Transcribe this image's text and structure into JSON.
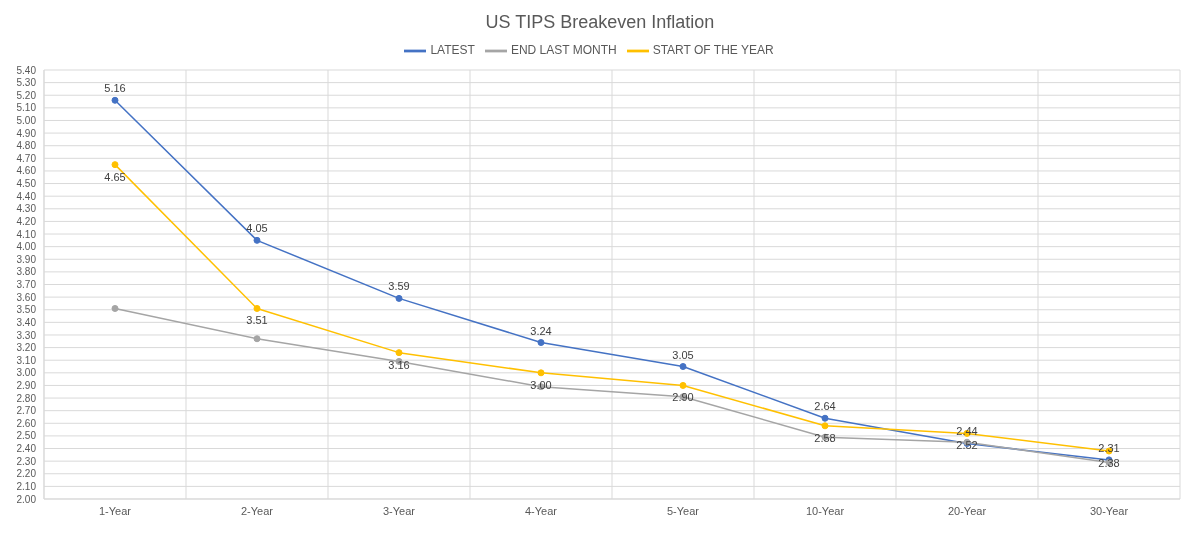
{
  "chart_data": {
    "type": "line",
    "title": "US TIPS Breakeven Inflation",
    "categories": [
      "1-Year",
      "2-Year",
      "3-Year",
      "4-Year",
      "5-Year",
      "10-Year",
      "20-Year",
      "30-Year"
    ],
    "series": [
      {
        "name": "LATEST",
        "color": "#4472c4",
        "values": [
          5.16,
          4.05,
          3.59,
          3.24,
          3.05,
          2.64,
          2.44,
          2.31
        ],
        "value_labels": [
          "5.16",
          "4.05",
          "3.59",
          "3.24",
          "3.05",
          "2.64",
          "2.44",
          "2.31"
        ]
      },
      {
        "name": "END LAST MONTH",
        "color": "#a5a5a5",
        "values": [
          3.51,
          3.27,
          3.09,
          2.89,
          2.81,
          2.49,
          2.45,
          2.29
        ]
      },
      {
        "name": "START OF THE YEAR",
        "color": "#ffc000",
        "values": [
          4.65,
          3.51,
          3.16,
          3.0,
          2.9,
          2.58,
          2.52,
          2.38
        ],
        "value_labels": [
          "4.65",
          "3.51",
          "3.16",
          "3.00",
          "2.90",
          "2.58",
          "2.52",
          "2.38"
        ]
      }
    ],
    "ylim": [
      2.0,
      5.4
    ],
    "yticks": [
      {
        "value": 2.0,
        "label": "2.00"
      },
      {
        "value": 2.1,
        "label": "2.10"
      },
      {
        "value": 2.2,
        "label": "2.20"
      },
      {
        "value": 2.3,
        "label": "2.30"
      },
      {
        "value": 2.4,
        "label": "2.40"
      },
      {
        "value": 2.5,
        "label": "2.50"
      },
      {
        "value": 2.6,
        "label": "2.60"
      },
      {
        "value": 2.7,
        "label": "2.70"
      },
      {
        "value": 2.8,
        "label": "2.80"
      },
      {
        "value": 2.9,
        "label": "2.90"
      },
      {
        "value": 3.0,
        "label": "3.00"
      },
      {
        "value": 3.1,
        "label": "3.10"
      },
      {
        "value": 3.2,
        "label": "3.20"
      },
      {
        "value": 3.3,
        "label": "3.30"
      },
      {
        "value": 3.4,
        "label": "3.40"
      },
      {
        "value": 3.5,
        "label": "3.50"
      },
      {
        "value": 3.6,
        "label": "3.60"
      },
      {
        "value": 3.7,
        "label": "3.70"
      },
      {
        "value": 3.8,
        "label": "3.80"
      },
      {
        "value": 3.9,
        "label": "3.90"
      },
      {
        "value": 4.0,
        "label": "4.00"
      },
      {
        "value": 4.1,
        "label": "4.10"
      },
      {
        "value": 4.2,
        "label": "4.20"
      },
      {
        "value": 4.3,
        "label": "4.30"
      },
      {
        "value": 4.4,
        "label": "4.40"
      },
      {
        "value": 4.5,
        "label": "4.50"
      },
      {
        "value": 4.6,
        "label": "4.60"
      },
      {
        "value": 4.7,
        "label": "4.70"
      },
      {
        "value": 4.8,
        "label": "4.80"
      },
      {
        "value": 4.9,
        "label": "4.90"
      },
      {
        "value": 5.0,
        "label": "5.00"
      },
      {
        "value": 5.1,
        "label": "5.10"
      },
      {
        "value": 5.2,
        "label": "5.20"
      },
      {
        "value": 5.3,
        "label": "5.30"
      },
      {
        "value": 5.4,
        "label": "5.40"
      }
    ],
    "grid": true,
    "legend": "top",
    "marker": "circle",
    "line_style": "solid"
  }
}
